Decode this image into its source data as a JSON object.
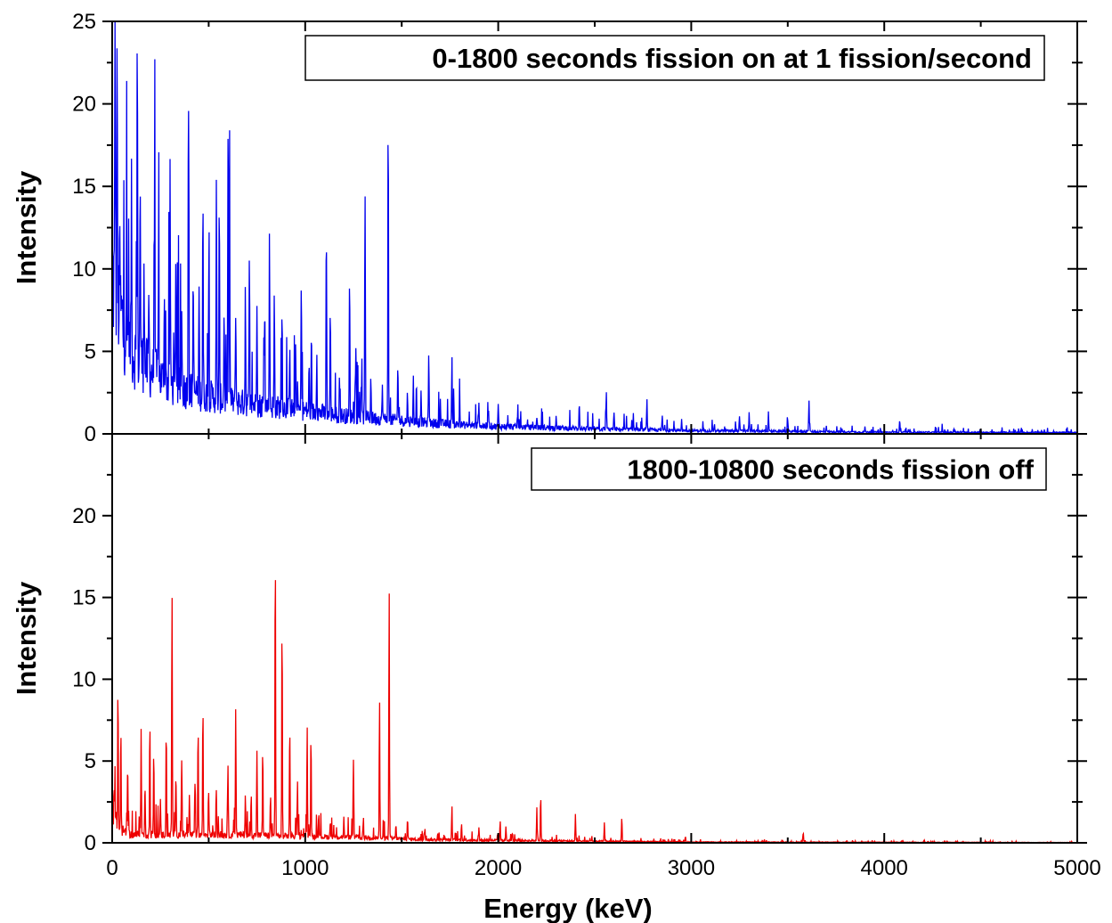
{
  "chart_data": [
    {
      "type": "line",
      "title": "0-1800 seconds fission on at 1 fission/second",
      "xlabel": "",
      "ylabel": "Intensity",
      "xlim": [
        0,
        5000
      ],
      "ylim": [
        0,
        25
      ],
      "yticks": [
        "0",
        "5",
        "10",
        "15",
        "20",
        "25"
      ],
      "grid": false,
      "legend": "none",
      "series": [
        {
          "color": "#0000ee",
          "baseline": [
            [
              0,
              9.5
            ],
            [
              50,
              7
            ],
            [
              100,
              5
            ],
            [
              200,
              3.8
            ],
            [
              300,
              3
            ],
            [
              400,
              2.6
            ],
            [
              500,
              2.3
            ],
            [
              600,
              2.0
            ],
            [
              800,
              1.7
            ],
            [
              1000,
              1.4
            ],
            [
              1200,
              1.1
            ],
            [
              1400,
              0.9
            ],
            [
              1600,
              0.7
            ],
            [
              1800,
              0.55
            ],
            [
              2000,
              0.45
            ],
            [
              2500,
              0.3
            ],
            [
              3000,
              0.2
            ],
            [
              3500,
              0.15
            ],
            [
              4000,
              0.1
            ],
            [
              5000,
              0.08
            ]
          ],
          "peaks": [
            [
              15,
              25
            ],
            [
              25,
              25
            ],
            [
              40,
              11
            ],
            [
              60,
              5
            ],
            [
              85,
              11.2
            ],
            [
              100,
              15.9
            ],
            [
              130,
              25
            ],
            [
              145,
              16.7
            ],
            [
              165,
              12
            ],
            [
              190,
              8.5
            ],
            [
              220,
              15.3
            ],
            [
              240,
              10
            ],
            [
              270,
              9
            ],
            [
              300,
              16.2
            ],
            [
              330,
              11
            ],
            [
              360,
              8.5
            ],
            [
              395,
              22.4
            ],
            [
              420,
              10.5
            ],
            [
              450,
              9
            ],
            [
              470,
              15.1
            ],
            [
              500,
              9
            ],
            [
              540,
              15.2
            ],
            [
              555,
              14
            ],
            [
              580,
              8
            ],
            [
              600,
              17
            ],
            [
              608,
              18.5
            ],
            [
              640,
              8
            ],
            [
              690,
              9
            ],
            [
              710,
              7.5
            ],
            [
              750,
              8.5
            ],
            [
              790,
              7
            ],
            [
              815,
              11.9
            ],
            [
              840,
              8.5
            ],
            [
              880,
              7.5
            ],
            [
              920,
              6
            ],
            [
              950,
              6
            ],
            [
              980,
              9.9
            ],
            [
              1020,
              4
            ],
            [
              1060,
              5
            ],
            [
              1110,
              11.4
            ],
            [
              1130,
              8
            ],
            [
              1180,
              3
            ],
            [
              1230,
              9.7
            ],
            [
              1260,
              4
            ],
            [
              1290,
              3.2
            ],
            [
              1310,
              15.2
            ],
            [
              1340,
              3.5
            ],
            [
              1400,
              3
            ],
            [
              1430,
              20.5
            ],
            [
              1480,
              4.5
            ],
            [
              1530,
              2.5
            ],
            [
              1560,
              3.4
            ],
            [
              1600,
              2.5
            ],
            [
              1640,
              5.2
            ],
            [
              1700,
              2
            ],
            [
              1760,
              4.8
            ],
            [
              1800,
              2
            ],
            [
              1900,
              1.9
            ],
            [
              1950,
              1.6
            ],
            [
              2000,
              1.7
            ],
            [
              2100,
              1.2
            ],
            [
              2200,
              1.1
            ],
            [
              2300,
              1.2
            ],
            [
              2420,
              2.0
            ],
            [
              2560,
              2.6
            ],
            [
              2600,
              1.4
            ],
            [
              2700,
              1.2
            ],
            [
              2770,
              1.9
            ],
            [
              2850,
              1.1
            ],
            [
              2950,
              0.9
            ],
            [
              3120,
              0.6
            ],
            [
              3250,
              1.1
            ],
            [
              3300,
              1.3
            ],
            [
              3400,
              1.3
            ],
            [
              3500,
              0.8
            ],
            [
              3610,
              2.1
            ],
            [
              3700,
              0.5
            ],
            [
              3900,
              0.4
            ],
            [
              4080,
              0.9
            ],
            [
              4300,
              0.3
            ],
            [
              4500,
              0.25
            ]
          ]
        }
      ]
    },
    {
      "type": "line",
      "title": "1800-10800 seconds fission off",
      "xlabel": "Energy (keV)",
      "ylabel": "Intensity",
      "xlim": [
        0,
        5000
      ],
      "ylim": [
        0,
        25
      ],
      "xticks": [
        "0",
        "1000",
        "2000",
        "3000",
        "4000",
        "5000"
      ],
      "yticks": [
        "0",
        "5",
        "10",
        "15",
        "20"
      ],
      "grid": false,
      "legend": "none",
      "series": [
        {
          "color": "#ee0000",
          "baseline": [
            [
              0,
              2.0
            ],
            [
              40,
              0.8
            ],
            [
              100,
              0.5
            ],
            [
              300,
              0.5
            ],
            [
              600,
              0.5
            ],
            [
              1000,
              0.4
            ],
            [
              1400,
              0.3
            ],
            [
              1600,
              0.2
            ],
            [
              2000,
              0.15
            ],
            [
              2500,
              0.1
            ],
            [
              3000,
              0.05
            ],
            [
              5000,
              0.02
            ]
          ],
          "peaks": [
            [
              10,
              4
            ],
            [
              30,
              9.8
            ],
            [
              45,
              7.2
            ],
            [
              80,
              5
            ],
            [
              150,
              7
            ],
            [
              170,
              3.5
            ],
            [
              195,
              7.6
            ],
            [
              215,
              5.3
            ],
            [
              250,
              2.5
            ],
            [
              280,
              6.8
            ],
            [
              310,
              15.5
            ],
            [
              330,
              4.5
            ],
            [
              360,
              5.3
            ],
            [
              400,
              3
            ],
            [
              430,
              4
            ],
            [
              445,
              7.2
            ],
            [
              470,
              8.8
            ],
            [
              500,
              3
            ],
            [
              540,
              3.3
            ],
            [
              600,
              4.5
            ],
            [
              640,
              8.6
            ],
            [
              690,
              3.2
            ],
            [
              720,
              3
            ],
            [
              750,
              5.5
            ],
            [
              780,
              6
            ],
            [
              820,
              3
            ],
            [
              845,
              18.7
            ],
            [
              880,
              14
            ],
            [
              920,
              7.4
            ],
            [
              960,
              4
            ],
            [
              1010,
              7.2
            ],
            [
              1030,
              7
            ],
            [
              1070,
              2
            ],
            [
              1130,
              1.4
            ],
            [
              1200,
              1.5
            ],
            [
              1250,
              5.2
            ],
            [
              1300,
              1.2
            ],
            [
              1385,
              8.9
            ],
            [
              1435,
              15.7
            ],
            [
              1470,
              1.2
            ],
            [
              1530,
              1.5
            ],
            [
              1620,
              0.9
            ],
            [
              1760,
              2.0
            ],
            [
              1810,
              1.2
            ],
            [
              1900,
              0.9
            ],
            [
              2010,
              1.4
            ],
            [
              2040,
              1.0
            ],
            [
              2200,
              2.2
            ],
            [
              2220,
              3.0
            ],
            [
              2400,
              1.8
            ],
            [
              2550,
              1.2
            ],
            [
              2640,
              1.5
            ],
            [
              2970,
              0.4
            ],
            [
              3580,
              0.6
            ],
            [
              3950,
              0.1
            ]
          ]
        }
      ]
    }
  ]
}
